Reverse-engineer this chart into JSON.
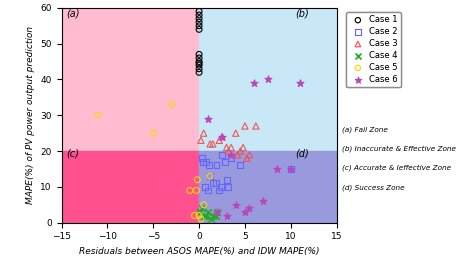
{
  "xlim": [
    -15,
    15
  ],
  "ylim": [
    0,
    60
  ],
  "xlabel": "Residuals between ASOS MAPE(%) and IDW MAPE(%)",
  "ylabel": "MAPE(%) of PV power output prediction",
  "threshold_x": 0,
  "threshold_y": 20,
  "zone_labels": {
    "a": "(a)",
    "b": "(b)",
    "c": "(c)",
    "d": "(d)"
  },
  "zone_colors": {
    "a": "#FFBBD0",
    "b": "#C8E8F8",
    "c": "#FF5090",
    "d": "#9999DD"
  },
  "zone_alpha": 1.0,
  "legend_zones": [
    "(a) Fail Zone",
    "(b) Inaccurate & Effective Zone",
    "(c) Accurate & Ieffective Zone",
    "(d) Success Zone"
  ],
  "case1": {
    "x": [
      0.0,
      0.0,
      0.0,
      0.0,
      0.0,
      0.0,
      0.0,
      0.0,
      0.0,
      0.0,
      0.0,
      0.0,
      0.0
    ],
    "y": [
      59,
      58,
      57,
      56,
      55,
      54,
      47,
      46,
      45,
      44,
      43,
      42,
      44.5
    ],
    "color": "black",
    "marker": "o",
    "label": "Case 1",
    "facecolor": "none",
    "size": 18,
    "lw": 0.8
  },
  "case2": {
    "x": [
      0.3,
      0.8,
      1.2,
      1.8,
      2.4,
      3.0,
      0.6,
      1.5,
      2.2,
      3.2,
      1.0,
      2.8,
      0.4,
      1.1,
      1.9,
      2.5,
      3.5,
      4.5,
      10.0
    ],
    "y": [
      18,
      17,
      13,
      11,
      10,
      12,
      10,
      11,
      9,
      10,
      9,
      17,
      17,
      16,
      16,
      19,
      18,
      16,
      15
    ],
    "color": "#6666FF",
    "marker": "s",
    "label": "Case 2",
    "facecolor": "none",
    "size": 18,
    "lw": 0.8
  },
  "case3": {
    "x": [
      0.2,
      1.2,
      2.2,
      3.5,
      4.5,
      5.5,
      4.0,
      5.0,
      6.2,
      3.0,
      4.2,
      5.2,
      0.5,
      1.5,
      2.5,
      3.2,
      4.8
    ],
    "y": [
      23,
      22,
      23,
      21,
      20,
      19,
      25,
      27,
      27,
      21,
      19,
      18,
      25,
      22,
      24,
      20,
      21
    ],
    "color": "#EE5555",
    "marker": "^",
    "label": "Case 3",
    "facecolor": "none",
    "size": 20,
    "lw": 0.8
  },
  "case4": {
    "x": [
      0.1,
      0.5,
      1.0,
      1.5,
      2.0,
      0.3,
      0.8,
      1.3,
      1.8
    ],
    "y": [
      3,
      2,
      3,
      2,
      3,
      4,
      2,
      1,
      2
    ],
    "color": "#22AA22",
    "marker": "x",
    "label": "Case 4",
    "facecolor": "none",
    "size": 22,
    "lw": 1.2
  },
  "case5": {
    "x": [
      -11.0,
      -5.0,
      -3.0,
      -1.0,
      -0.5,
      -0.2,
      0.2,
      0.5,
      1.2,
      -0.3,
      0.0
    ],
    "y": [
      30,
      25,
      33,
      9,
      2,
      12,
      1,
      5,
      13,
      9,
      2
    ],
    "color": "#FFD700",
    "marker": "o",
    "label": "Case 5",
    "facecolor": "none",
    "size": 18,
    "lw": 0.8
  },
  "case6": {
    "x": [
      1.0,
      2.5,
      3.5,
      4.0,
      5.5,
      6.0,
      7.5,
      8.5,
      2.0,
      3.0,
      5.0,
      7.0,
      10.0,
      11.0
    ],
    "y": [
      29,
      24,
      19,
      5,
      4,
      39,
      40,
      15,
      3,
      2,
      3,
      6,
      15,
      39
    ],
    "color": "#BB44BB",
    "marker": "*",
    "label": "Case 6",
    "facecolor": "#BB44BB",
    "size": 28,
    "lw": 0.8
  },
  "xticks": [
    -15,
    -10,
    -5,
    0,
    5,
    10,
    15
  ],
  "yticks": [
    0,
    10,
    20,
    30,
    40,
    50,
    60
  ],
  "figsize": [
    4.74,
    2.62
  ],
  "dpi": 100
}
